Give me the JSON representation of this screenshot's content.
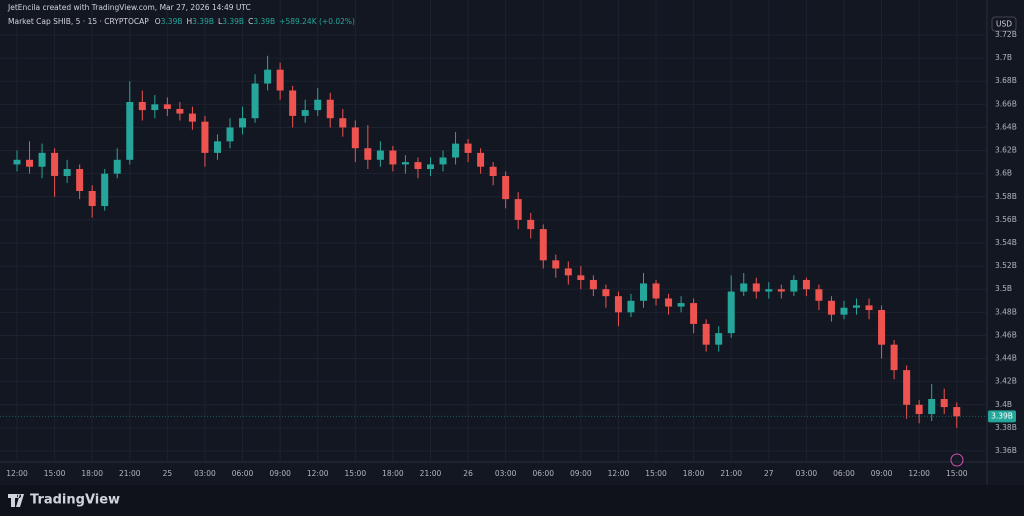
{
  "chart_data": {
    "type": "candlestick",
    "source_note": "JetEncila created with TradingView.com, Mar 27, 2026 14:49 UTC",
    "symbol": "Market Cap SHIB, 5 · 15 · CRYPTOCAP",
    "legend": [
      {
        "key": "O",
        "value": "3.39B"
      },
      {
        "key": "H",
        "value": "3.39B"
      },
      {
        "key": "L",
        "value": "3.39B"
      },
      {
        "key": "C",
        "value": "3.39B"
      }
    ],
    "change": "+589.24K (+0.02%)",
    "currency": "USD",
    "brand": "TradingView",
    "up_color": "#26a69a",
    "down_color": "#ef5350",
    "grid": true,
    "categories": [
      "12:00",
      null,
      null,
      "15:00",
      null,
      null,
      "18:00",
      null,
      null,
      "21:00",
      null,
      null,
      "25",
      null,
      null,
      "03:00",
      null,
      null,
      "06:00",
      null,
      null,
      "09:00",
      null,
      null,
      "12:00",
      null,
      null,
      "15:00",
      null,
      null,
      "18:00",
      null,
      null,
      "21:00",
      null,
      null,
      "26",
      null,
      null,
      "03:00",
      null,
      null,
      "06:00",
      null,
      null,
      "09:00",
      null,
      null,
      "12:00",
      null,
      null,
      "15:00",
      null,
      null,
      "18:00",
      null,
      null,
      "21:00",
      null,
      null,
      "27",
      null,
      null,
      "03:00",
      null,
      null,
      "06:00",
      null,
      null,
      "09:00",
      null,
      null,
      "12:00",
      null,
      null,
      "15:00"
    ],
    "open": [
      3.608,
      3.612,
      3.606,
      3.618,
      3.598,
      3.604,
      3.585,
      3.572,
      3.6,
      3.612,
      3.662,
      3.655,
      3.66,
      3.656,
      3.652,
      3.645,
      3.618,
      3.628,
      3.64,
      3.648,
      3.678,
      3.69,
      3.672,
      3.65,
      3.655,
      3.664,
      3.648,
      3.64,
      3.622,
      3.612,
      3.62,
      3.608,
      3.61,
      3.604,
      3.608,
      3.614,
      3.626,
      3.618,
      3.606,
      3.598,
      3.578,
      3.56,
      3.552,
      3.525,
      3.518,
      3.512,
      3.508,
      3.5,
      3.494,
      3.48,
      3.49,
      3.505,
      3.492,
      3.485,
      3.488,
      3.47,
      3.452,
      3.462,
      3.498,
      3.505,
      3.498,
      3.5,
      3.498,
      3.508,
      3.5,
      3.49,
      3.478,
      3.484,
      3.486,
      3.482,
      3.452,
      3.43,
      3.4,
      3.392,
      3.405,
      3.398
    ],
    "high": [
      3.62,
      3.628,
      3.626,
      3.622,
      3.612,
      3.608,
      3.59,
      3.604,
      3.622,
      3.68,
      3.672,
      3.668,
      3.666,
      3.662,
      3.658,
      3.65,
      3.634,
      3.648,
      3.658,
      3.686,
      3.702,
      3.696,
      3.676,
      3.664,
      3.674,
      3.67,
      3.656,
      3.646,
      3.642,
      3.628,
      3.624,
      3.616,
      3.614,
      3.614,
      3.62,
      3.636,
      3.63,
      3.622,
      3.61,
      3.602,
      3.584,
      3.566,
      3.556,
      3.53,
      3.524,
      3.52,
      3.512,
      3.504,
      3.498,
      3.496,
      3.514,
      3.508,
      3.496,
      3.494,
      3.492,
      3.474,
      3.468,
      3.512,
      3.514,
      3.51,
      3.506,
      3.504,
      3.512,
      3.51,
      3.504,
      3.494,
      3.49,
      3.492,
      3.492,
      3.486,
      3.456,
      3.434,
      3.404,
      3.418,
      3.414,
      3.402
    ],
    "low": [
      3.602,
      3.6,
      3.596,
      3.58,
      3.592,
      3.578,
      3.562,
      3.568,
      3.596,
      3.608,
      3.646,
      3.648,
      3.65,
      3.646,
      3.638,
      3.606,
      3.612,
      3.622,
      3.634,
      3.644,
      3.672,
      3.664,
      3.64,
      3.644,
      3.65,
      3.64,
      3.632,
      3.61,
      3.604,
      3.606,
      3.602,
      3.6,
      3.596,
      3.598,
      3.602,
      3.608,
      3.61,
      3.6,
      3.59,
      3.57,
      3.552,
      3.544,
      3.518,
      3.51,
      3.504,
      3.5,
      3.494,
      3.484,
      3.468,
      3.476,
      3.484,
      3.486,
      3.478,
      3.48,
      3.462,
      3.446,
      3.446,
      3.458,
      3.494,
      3.492,
      3.492,
      3.492,
      3.494,
      3.494,
      3.482,
      3.472,
      3.474,
      3.478,
      3.474,
      3.44,
      3.422,
      3.388,
      3.384,
      3.386,
      3.392,
      3.38
    ],
    "close": [
      3.612,
      3.606,
      3.618,
      3.598,
      3.604,
      3.585,
      3.572,
      3.6,
      3.612,
      3.662,
      3.655,
      3.66,
      3.656,
      3.652,
      3.645,
      3.618,
      3.628,
      3.64,
      3.648,
      3.678,
      3.69,
      3.672,
      3.65,
      3.655,
      3.664,
      3.648,
      3.64,
      3.622,
      3.612,
      3.62,
      3.608,
      3.61,
      3.604,
      3.608,
      3.614,
      3.626,
      3.618,
      3.606,
      3.598,
      3.578,
      3.56,
      3.552,
      3.525,
      3.518,
      3.512,
      3.508,
      3.5,
      3.494,
      3.48,
      3.49,
      3.505,
      3.492,
      3.485,
      3.488,
      3.47,
      3.452,
      3.462,
      3.498,
      3.505,
      3.498,
      3.5,
      3.498,
      3.508,
      3.5,
      3.49,
      3.478,
      3.484,
      3.486,
      3.482,
      3.452,
      3.43,
      3.4,
      3.392,
      3.405,
      3.398,
      3.39
    ],
    "last_price": {
      "value": 3.39,
      "label": "3.39B"
    },
    "ylim": [
      3.355,
      3.73
    ],
    "yticks": [
      {
        "value": 3.72,
        "label": "3.72B"
      },
      {
        "value": 3.7,
        "label": "3.7B"
      },
      {
        "value": 3.68,
        "label": "3.68B"
      },
      {
        "value": 3.66,
        "label": "3.66B"
      },
      {
        "value": 3.64,
        "label": "3.64B"
      },
      {
        "value": 3.62,
        "label": "3.62B"
      },
      {
        "value": 3.6,
        "label": "3.6B"
      },
      {
        "value": 3.58,
        "label": "3.58B"
      },
      {
        "value": 3.56,
        "label": "3.56B"
      },
      {
        "value": 3.54,
        "label": "3.54B"
      },
      {
        "value": 3.52,
        "label": "3.52B"
      },
      {
        "value": 3.5,
        "label": "3.5B"
      },
      {
        "value": 3.48,
        "label": "3.48B"
      },
      {
        "value": 3.46,
        "label": "3.46B"
      },
      {
        "value": 3.44,
        "label": "3.44B"
      },
      {
        "value": 3.42,
        "label": "3.42B"
      },
      {
        "value": 3.4,
        "label": "3.4B"
      },
      {
        "value": 3.38,
        "label": "3.38B"
      },
      {
        "value": 3.36,
        "label": "3.36B"
      }
    ]
  }
}
